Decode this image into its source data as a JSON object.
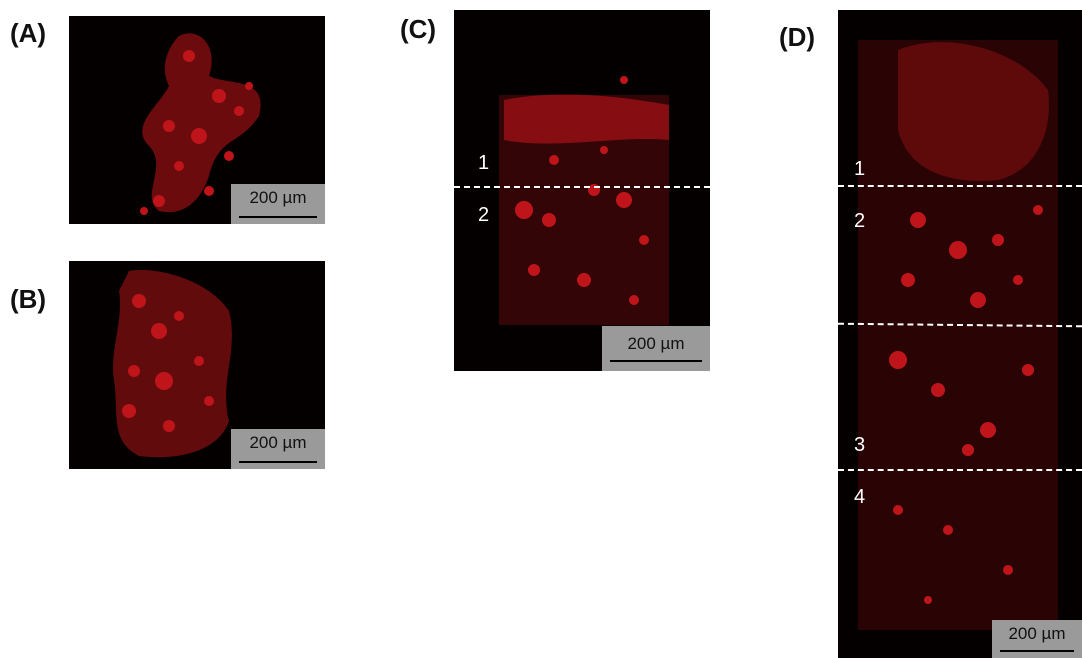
{
  "panels": {
    "a": {
      "label": "(A)",
      "scale": "200 µm"
    },
    "b": {
      "label": "(B)",
      "scale": "200 µm"
    },
    "c": {
      "label": "(C)",
      "scale": "200 µm",
      "regions": [
        "1",
        "2"
      ]
    },
    "d": {
      "label": "(D)",
      "scale": "200 µm",
      "regions": [
        "1",
        "2",
        "3",
        "4"
      ]
    }
  },
  "colors": {
    "stain": "#e0191f",
    "background": "#050000",
    "scale_box": "#9a9a9a"
  }
}
